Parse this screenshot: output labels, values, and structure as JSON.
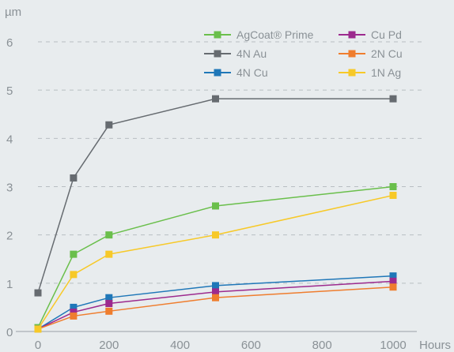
{
  "chart_data": {
    "type": "line",
    "ylabel": "µm",
    "xlabel": "Hours",
    "x_ticks": [
      0,
      200,
      400,
      600,
      800,
      1000
    ],
    "y_ticks": [
      0,
      1,
      2,
      3,
      4,
      5,
      6
    ],
    "xlim": [
      0,
      1000
    ],
    "ylim": [
      0,
      6
    ],
    "grid": "horizontal dashed",
    "legend_position": "top-right",
    "series": [
      {
        "name": "AgCoat® Prime",
        "color": "#6abf4b",
        "points": [
          [
            0,
            0.08
          ],
          [
            100,
            1.6
          ],
          [
            200,
            2.0
          ],
          [
            500,
            2.6
          ],
          [
            1000,
            3.0
          ]
        ]
      },
      {
        "name": "4N Au",
        "color": "#666b70",
        "points": [
          [
            0,
            0.8
          ],
          [
            100,
            3.18
          ],
          [
            200,
            4.28
          ],
          [
            500,
            4.82
          ],
          [
            1000,
            4.82
          ]
        ]
      },
      {
        "name": "4N Cu",
        "color": "#1f77b8",
        "points": [
          [
            0,
            0.05
          ],
          [
            100,
            0.5
          ],
          [
            200,
            0.7
          ],
          [
            500,
            0.95
          ],
          [
            1000,
            1.15
          ]
        ]
      },
      {
        "name": "Cu Pd",
        "color": "#9c2a8e",
        "points": [
          [
            0,
            0.05
          ],
          [
            100,
            0.4
          ],
          [
            200,
            0.58
          ],
          [
            500,
            0.82
          ],
          [
            1000,
            1.04
          ]
        ]
      },
      {
        "name": "2N Cu",
        "color": "#ef7d2e",
        "points": [
          [
            0,
            0.05
          ],
          [
            100,
            0.32
          ],
          [
            200,
            0.42
          ],
          [
            500,
            0.7
          ],
          [
            1000,
            0.92
          ]
        ]
      },
      {
        "name": "1N Ag",
        "color": "#f7c928",
        "points": [
          [
            0,
            0.05
          ],
          [
            100,
            1.18
          ],
          [
            200,
            1.6
          ],
          [
            500,
            2.0
          ],
          [
            1000,
            2.82
          ]
        ]
      }
    ]
  }
}
